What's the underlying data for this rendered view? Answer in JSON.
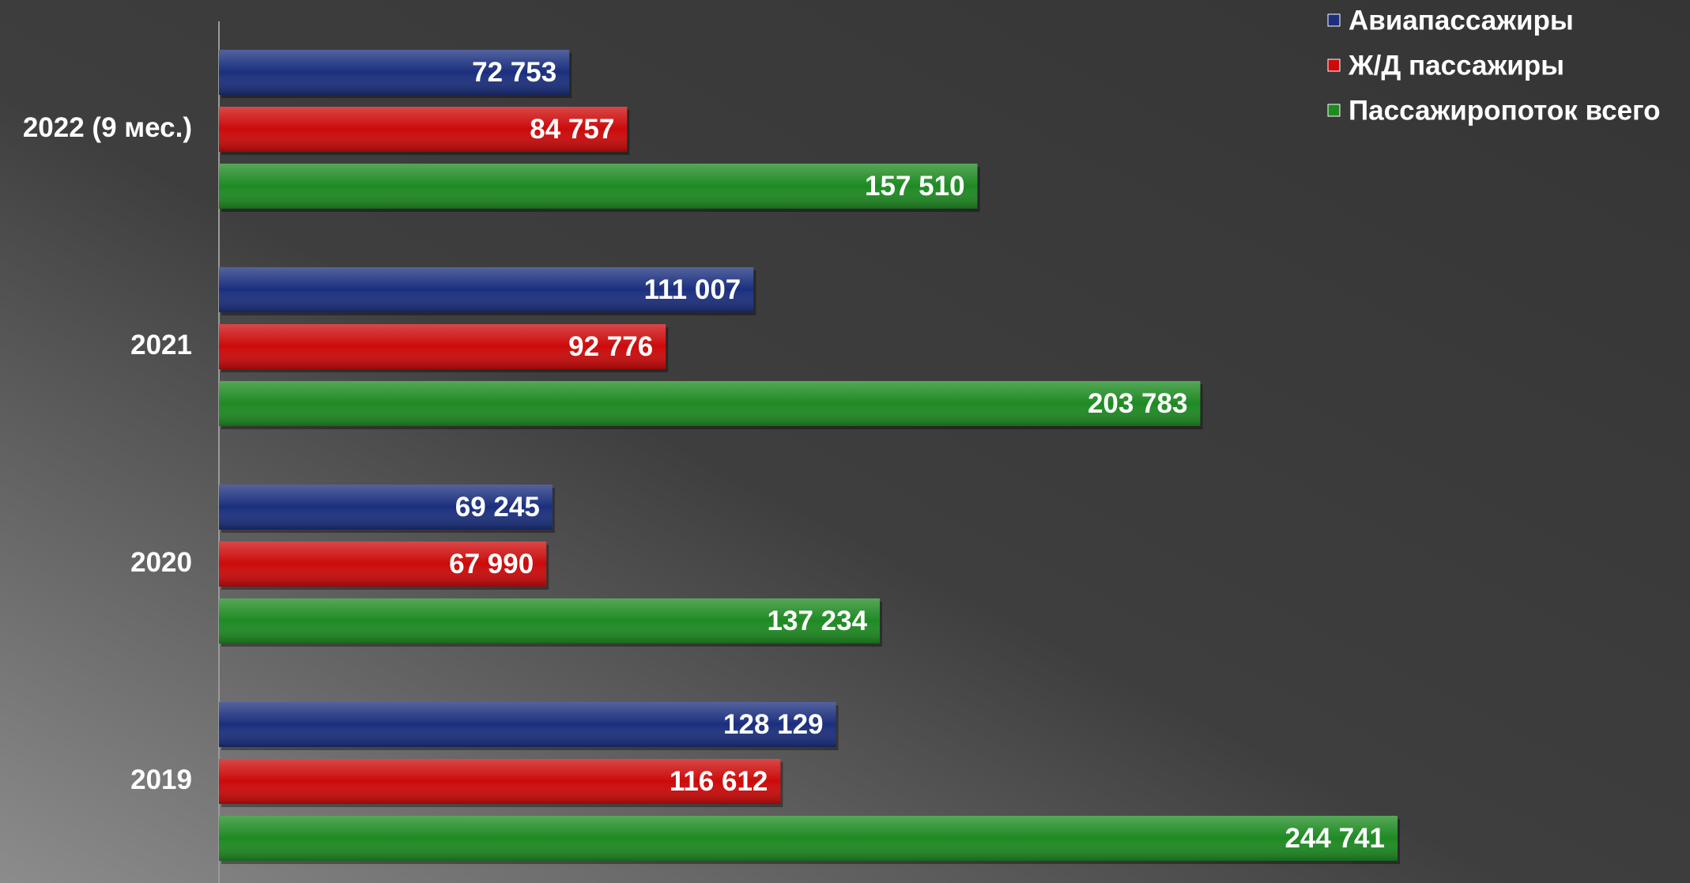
{
  "chart_data": {
    "type": "bar",
    "orientation": "horizontal",
    "categories": [
      "2022 (9 мес.)",
      "2021",
      "2020",
      "2019"
    ],
    "series": [
      {
        "name": "Авиапассажиры",
        "color": "#1b2f7e",
        "values": [
          72753,
          111007,
          69245,
          128129
        ],
        "value_labels": [
          "72 753",
          "111 007",
          "69 245",
          "128 129"
        ]
      },
      {
        "name": "Ж/Д пассажиры",
        "color": "#cc0a0a",
        "values": [
          84757,
          92776,
          67990,
          116612
        ],
        "value_labels": [
          "84 757",
          "92 776",
          "67 990",
          "116 612"
        ]
      },
      {
        "name": "Пассажиропоток всего",
        "color": "#1e8a22",
        "values": [
          157510,
          203783,
          137234,
          244741
        ],
        "value_labels": [
          "157 510",
          "203 783",
          "137 234",
          "244 741"
        ]
      }
    ],
    "legend": "top-right",
    "grid": false
  }
}
